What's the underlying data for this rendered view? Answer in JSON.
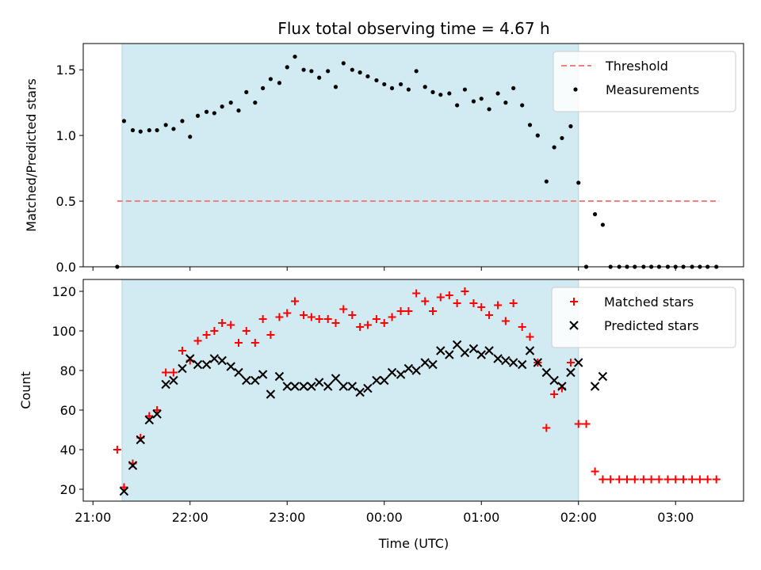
{
  "chart_data": {
    "title": "Flux total observing time = 4.67 h",
    "xlabel": "Time (UTC)",
    "x_tick_labels": [
      "21:00",
      "22:00",
      "23:00",
      "00:00",
      "01:00",
      "02:00",
      "03:00"
    ],
    "x_tick_hours": [
      0,
      1,
      2,
      3,
      4,
      5,
      6
    ],
    "x_range_hours": [
      -0.1,
      6.7
    ],
    "observing_window_hours": [
      0.3,
      5.0
    ],
    "colors": {
      "window": "#add8e6",
      "threshold": "#f08080",
      "measurements": "#000000",
      "matched": "#ff0000",
      "predicted": "#000000"
    },
    "panels": [
      {
        "type": "scatter",
        "ylabel": "Matched/Predicted stars",
        "ylim": [
          0,
          1.7
        ],
        "y_ticks": [
          0.0,
          0.5,
          1.0,
          1.5
        ],
        "y_tick_labels": [
          "0.0",
          "0.5",
          "1.0",
          "1.5"
        ],
        "legend_position": "upper-right",
        "threshold": {
          "name": "Threshold",
          "value": 0.5,
          "x_range_hours": [
            0.25,
            6.45
          ]
        },
        "series": [
          {
            "name": "Measurements",
            "points": [
              [
                0.25,
                0.0
              ],
              [
                0.32,
                1.11
              ],
              [
                0.41,
                1.04
              ],
              [
                0.49,
                1.03
              ],
              [
                0.58,
                1.04
              ],
              [
                0.66,
                1.04
              ],
              [
                0.75,
                1.08
              ],
              [
                0.83,
                1.05
              ],
              [
                0.92,
                1.11
              ],
              [
                1.0,
                0.99
              ],
              [
                1.08,
                1.15
              ],
              [
                1.17,
                1.18
              ],
              [
                1.25,
                1.17
              ],
              [
                1.33,
                1.22
              ],
              [
                1.42,
                1.25
              ],
              [
                1.5,
                1.19
              ],
              [
                1.58,
                1.33
              ],
              [
                1.67,
                1.25
              ],
              [
                1.75,
                1.36
              ],
              [
                1.83,
                1.43
              ],
              [
                1.92,
                1.4
              ],
              [
                2.0,
                1.52
              ],
              [
                2.08,
                1.6
              ],
              [
                2.17,
                1.5
              ],
              [
                2.25,
                1.49
              ],
              [
                2.33,
                1.44
              ],
              [
                2.42,
                1.49
              ],
              [
                2.5,
                1.37
              ],
              [
                2.58,
                1.55
              ],
              [
                2.67,
                1.5
              ],
              [
                2.75,
                1.48
              ],
              [
                2.83,
                1.45
              ],
              [
                2.92,
                1.42
              ],
              [
                3.0,
                1.39
              ],
              [
                3.08,
                1.36
              ],
              [
                3.17,
                1.39
              ],
              [
                3.25,
                1.35
              ],
              [
                3.33,
                1.49
              ],
              [
                3.42,
                1.37
              ],
              [
                3.5,
                1.33
              ],
              [
                3.58,
                1.31
              ],
              [
                3.67,
                1.32
              ],
              [
                3.75,
                1.23
              ],
              [
                3.83,
                1.35
              ],
              [
                3.92,
                1.26
              ],
              [
                4.0,
                1.28
              ],
              [
                4.08,
                1.2
              ],
              [
                4.17,
                1.32
              ],
              [
                4.25,
                1.25
              ],
              [
                4.33,
                1.36
              ],
              [
                4.42,
                1.23
              ],
              [
                4.5,
                1.08
              ],
              [
                4.58,
                1.0
              ],
              [
                4.67,
                0.65
              ],
              [
                4.75,
                0.91
              ],
              [
                4.83,
                0.98
              ],
              [
                4.92,
                1.07
              ],
              [
                5.0,
                0.64
              ],
              [
                5.08,
                0.0
              ],
              [
                5.17,
                0.4
              ],
              [
                5.25,
                0.32
              ],
              [
                5.33,
                0.0
              ],
              [
                5.42,
                0.0
              ],
              [
                5.5,
                0.0
              ],
              [
                5.58,
                0.0
              ],
              [
                5.67,
                0.0
              ],
              [
                5.75,
                0.0
              ],
              [
                5.83,
                0.0
              ],
              [
                5.92,
                0.0
              ],
              [
                6.0,
                0.0
              ],
              [
                6.08,
                0.0
              ],
              [
                6.17,
                0.0
              ],
              [
                6.25,
                0.0
              ],
              [
                6.33,
                0.0
              ],
              [
                6.42,
                0.0
              ]
            ]
          }
        ]
      },
      {
        "type": "scatter",
        "ylabel": "Count",
        "ylim": [
          14,
          126
        ],
        "y_ticks": [
          20,
          40,
          60,
          80,
          100,
          120
        ],
        "y_tick_labels": [
          "20",
          "40",
          "60",
          "80",
          "100",
          "120"
        ],
        "legend_position": "upper-right",
        "series": [
          {
            "name": "Matched stars",
            "marker": "plus",
            "points": [
              [
                0.25,
                40
              ],
              [
                0.32,
                21
              ],
              [
                0.41,
                33
              ],
              [
                0.49,
                46
              ],
              [
                0.58,
                57
              ],
              [
                0.66,
                60
              ],
              [
                0.75,
                79
              ],
              [
                0.83,
                79
              ],
              [
                0.92,
                90
              ],
              [
                1.0,
                85
              ],
              [
                1.08,
                95
              ],
              [
                1.17,
                98
              ],
              [
                1.25,
                100
              ],
              [
                1.33,
                104
              ],
              [
                1.42,
                103
              ],
              [
                1.5,
                94
              ],
              [
                1.58,
                100
              ],
              [
                1.67,
                94
              ],
              [
                1.75,
                106
              ],
              [
                1.83,
                98
              ],
              [
                1.92,
                107
              ],
              [
                2.0,
                109
              ],
              [
                2.08,
                115
              ],
              [
                2.17,
                108
              ],
              [
                2.25,
                107
              ],
              [
                2.33,
                106
              ],
              [
                2.42,
                106
              ],
              [
                2.5,
                104
              ],
              [
                2.58,
                111
              ],
              [
                2.67,
                108
              ],
              [
                2.75,
                102
              ],
              [
                2.83,
                103
              ],
              [
                2.92,
                106
              ],
              [
                3.0,
                104
              ],
              [
                3.08,
                107
              ],
              [
                3.17,
                110
              ],
              [
                3.25,
                110
              ],
              [
                3.33,
                119
              ],
              [
                3.42,
                115
              ],
              [
                3.5,
                110
              ],
              [
                3.58,
                117
              ],
              [
                3.67,
                118
              ],
              [
                3.75,
                114
              ],
              [
                3.83,
                120
              ],
              [
                3.92,
                114
              ],
              [
                4.0,
                112
              ],
              [
                4.08,
                108
              ],
              [
                4.17,
                113
              ],
              [
                4.25,
                105
              ],
              [
                4.33,
                114
              ],
              [
                4.42,
                102
              ],
              [
                4.5,
                97
              ],
              [
                4.58,
                84
              ],
              [
                4.67,
                51
              ],
              [
                4.75,
                68
              ],
              [
                4.83,
                71
              ],
              [
                4.92,
                84
              ],
              [
                5.0,
                53
              ],
              [
                5.08,
                53
              ],
              [
                5.17,
                29
              ],
              [
                5.25,
                25
              ],
              [
                5.33,
                25
              ],
              [
                5.42,
                25
              ],
              [
                5.5,
                25
              ],
              [
                5.58,
                25
              ],
              [
                5.67,
                25
              ],
              [
                5.75,
                25
              ],
              [
                5.83,
                25
              ],
              [
                5.92,
                25
              ],
              [
                6.0,
                25
              ],
              [
                6.08,
                25
              ],
              [
                6.17,
                25
              ],
              [
                6.25,
                25
              ],
              [
                6.33,
                25
              ],
              [
                6.42,
                25
              ]
            ]
          },
          {
            "name": "Predicted stars",
            "marker": "x",
            "points": [
              [
                0.32,
                19
              ],
              [
                0.41,
                32
              ],
              [
                0.49,
                45
              ],
              [
                0.58,
                55
              ],
              [
                0.66,
                58
              ],
              [
                0.75,
                73
              ],
              [
                0.83,
                75
              ],
              [
                0.92,
                81
              ],
              [
                1.0,
                86
              ],
              [
                1.08,
                83
              ],
              [
                1.17,
                83
              ],
              [
                1.25,
                86
              ],
              [
                1.33,
                85
              ],
              [
                1.42,
                82
              ],
              [
                1.5,
                79
              ],
              [
                1.58,
                75
              ],
              [
                1.67,
                75
              ],
              [
                1.75,
                78
              ],
              [
                1.83,
                68
              ],
              [
                1.92,
                77
              ],
              [
                2.0,
                72
              ],
              [
                2.08,
                72
              ],
              [
                2.17,
                72
              ],
              [
                2.25,
                72
              ],
              [
                2.33,
                74
              ],
              [
                2.42,
                72
              ],
              [
                2.5,
                76
              ],
              [
                2.58,
                72
              ],
              [
                2.67,
                72
              ],
              [
                2.75,
                69
              ],
              [
                2.83,
                71
              ],
              [
                2.92,
                75
              ],
              [
                3.0,
                75
              ],
              [
                3.08,
                79
              ],
              [
                3.17,
                78
              ],
              [
                3.25,
                81
              ],
              [
                3.33,
                80
              ],
              [
                3.42,
                84
              ],
              [
                3.5,
                83
              ],
              [
                3.58,
                90
              ],
              [
                3.67,
                88
              ],
              [
                3.75,
                93
              ],
              [
                3.83,
                89
              ],
              [
                3.92,
                91
              ],
              [
                4.0,
                88
              ],
              [
                4.08,
                90
              ],
              [
                4.17,
                86
              ],
              [
                4.25,
                85
              ],
              [
                4.33,
                84
              ],
              [
                4.42,
                83
              ],
              [
                4.5,
                90
              ],
              [
                4.58,
                84
              ],
              [
                4.67,
                79
              ],
              [
                4.75,
                75
              ],
              [
                4.83,
                72
              ],
              [
                4.92,
                79
              ],
              [
                5.0,
                84
              ],
              [
                5.17,
                72
              ],
              [
                5.25,
                77
              ]
            ]
          }
        ]
      }
    ]
  }
}
